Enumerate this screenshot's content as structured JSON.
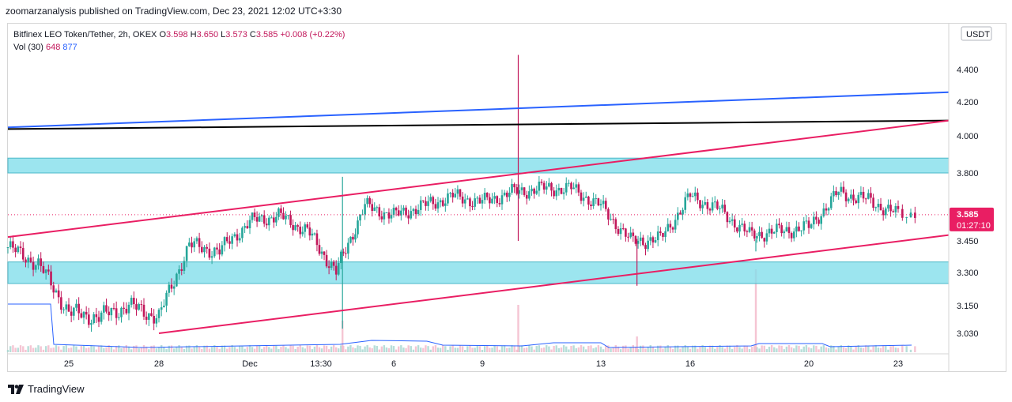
{
  "header": {
    "published": "zoomarzanalysis published on TradingView.com, Dec 23, 2021 12:02 UTC+3:30"
  },
  "legend": {
    "symbol": "Bitfinex LEO Token/Tether, 2h, OKEX",
    "o_label": "O",
    "o": "3.598",
    "h_label": "H",
    "h": "3.650",
    "l_label": "L",
    "l": "3.573",
    "c_label": "C",
    "c": "3.585",
    "change": "+0.008 (+0.22%)",
    "vol_label": "Vol (30)",
    "vol": "648",
    "vol_ma": "877"
  },
  "footer": {
    "brand": "TradingView"
  },
  "colors": {
    "up": "#26a69a",
    "down": "#c2185b",
    "zone_fill": "#80deea",
    "blue_line": "#2962ff",
    "black_line": "#000000",
    "channel": "#e91e63",
    "vol_ma": "#2962ff",
    "price_tag": "#e91e63"
  },
  "chart_data": {
    "type": "candlestick",
    "currency": "USDT",
    "last_price": "3.585",
    "countdown": "01:27:10",
    "y_ticks": [
      "4.400",
      "4.200",
      "4.000",
      "3.800",
      "3.450",
      "3.300",
      "3.150",
      "3.030"
    ],
    "x_ticks": [
      "25",
      "28",
      "Dec",
      "13:30",
      "6",
      "9",
      "13",
      "16",
      "20",
      "23"
    ],
    "zones": [
      {
        "low": 3.8,
        "high": 3.88
      },
      {
        "low": 3.25,
        "high": 3.35
      }
    ],
    "trendlines": [
      {
        "name": "blue",
        "x": [
          "Nov 23",
          "Dec 24"
        ],
        "y": [
          4.05,
          4.26
        ]
      },
      {
        "name": "black",
        "x": [
          "Nov 23",
          "Dec 24"
        ],
        "y": [
          4.04,
          4.09
        ]
      },
      {
        "name": "channel-upper",
        "x": [
          "Nov 23",
          "Dec 24"
        ],
        "y": [
          3.47,
          4.09
        ]
      },
      {
        "name": "channel-lower",
        "x": [
          "Nov 28",
          "Dec 24"
        ],
        "y": [
          3.03,
          3.48
        ]
      }
    ],
    "price_path": {
      "x": [
        "Nov 23",
        "Nov 24",
        "Nov 25",
        "Nov 26",
        "Nov 27",
        "Nov 28",
        "Nov 29",
        "Nov 30",
        "Dec 1",
        "Dec 2",
        "Dec 3",
        "Dec 4",
        "Dec 5",
        "Dec 6",
        "Dec 7",
        "Dec 8",
        "Dec 9",
        "Dec 10",
        "Dec 11",
        "Dec 12",
        "Dec 13",
        "Dec 14",
        "Dec 15",
        "Dec 16",
        "Dec 17",
        "Dec 18",
        "Dec 19",
        "Dec 20",
        "Dec 21",
        "Dec 22",
        "Dec 23"
      ],
      "y": [
        3.42,
        3.34,
        3.12,
        3.1,
        3.15,
        3.1,
        3.43,
        3.4,
        3.55,
        3.58,
        3.5,
        3.3,
        3.63,
        3.58,
        3.63,
        3.68,
        3.65,
        3.7,
        3.72,
        3.72,
        3.63,
        3.45,
        3.46,
        3.68,
        3.61,
        3.48,
        3.5,
        3.52,
        3.7,
        3.66,
        3.585
      ]
    }
  }
}
